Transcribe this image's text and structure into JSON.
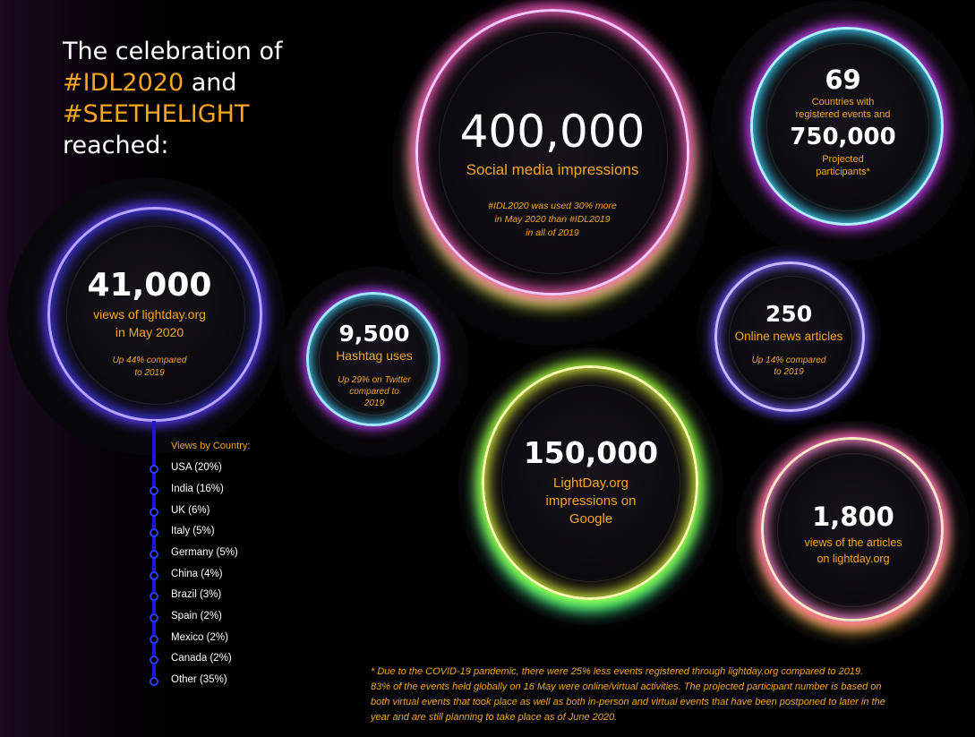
{
  "title": {
    "line1": "The celebration of",
    "line2_hl": "#IDL2020",
    "line2_rest": " and",
    "line3_hl": "#SEETHELIGHT",
    "line4": "reached:"
  },
  "stats": {
    "views": {
      "number": "41,000",
      "label1": "views of lightday.org",
      "label2": "in May 2020",
      "note1": "Up 44% compared",
      "note2": "to 2019"
    },
    "hashtag": {
      "number": "9,500",
      "label": "Hashtag uses",
      "note1": "Up 29% on Twitter",
      "note2": "compared to",
      "note3": "2019"
    },
    "social": {
      "number": "400,000",
      "label": "Social media impressions",
      "note1": "#IDL2020 was used 30% more",
      "note2": "in May 2020 than #IDL2019",
      "note3": "in  all of 2019"
    },
    "countries": {
      "number1": "69",
      "label1a": "Countries with",
      "label1b": "registered events and",
      "number2": "750,000",
      "label2a": "Projected",
      "label2b": "participants*"
    },
    "news": {
      "number": "250",
      "label": "Online news articles",
      "note1": "Up 14% compared",
      "note2": "to 2019"
    },
    "google": {
      "number": "150,000",
      "label1": "LightDay.org",
      "label2": "impressions on",
      "label3": "Google"
    },
    "articles": {
      "number": "1,800",
      "label1": "views of the articles",
      "label2": "on lightday.org"
    }
  },
  "country_list": {
    "heading": "Views by Country:",
    "items": [
      "USA (20%)",
      "India (16%)",
      "UK (6%)",
      "Italy (5%)",
      "Germany (5%)",
      "China (4%)",
      "Brazil (3%)",
      "Spain (2%)",
      "Mexico (2%)",
      "Canada (2%)",
      "Other (35%)"
    ]
  },
  "footnote": {
    "line1": "* Due to the COVID-19 pandemic, there were 25% less events registered through lightday.org compared to 2019.",
    "line2": "83% of the events held globally on 16 May were online/virtual activities. The projected participant number is based on",
    "line3": "both virtual events that took place as well as both in-person and virtual events that have been postponed to later in the",
    "line4": "year and are still planning to take place as of June 2020."
  },
  "colors": {
    "accent": "#f5a623",
    "timeline": "#1a1ad6"
  }
}
